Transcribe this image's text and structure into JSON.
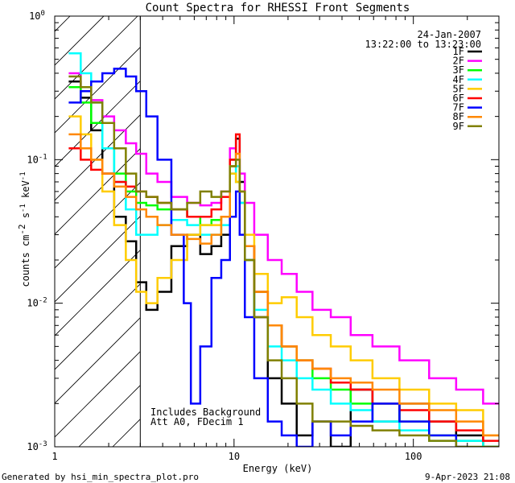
{
  "chart_data": {
    "type": "line",
    "title": "Count Spectra for RHESSI Front Segments",
    "xlabel": "Energy (keV)",
    "ylabel_parts": [
      "counts cm",
      "-2",
      " s",
      "-1",
      " keV",
      "-1"
    ],
    "xscale": "log",
    "yscale": "log",
    "xlim": [
      1,
      300
    ],
    "ylim": [
      0.001,
      1
    ],
    "x_ticks": [
      {
        "value": 1,
        "label": "1"
      },
      {
        "value": 10,
        "label": "10"
      },
      {
        "value": 100,
        "label": "100"
      }
    ],
    "y_ticks": [
      {
        "value": 0.001,
        "base": "10",
        "exp": "-3"
      },
      {
        "value": 0.01,
        "base": "10",
        "exp": "-2"
      },
      {
        "value": 0.1,
        "base": "10",
        "exp": "-1"
      },
      {
        "value": 1,
        "base": "10",
        "exp": "0"
      }
    ],
    "hatched_region_keV": [
      1,
      3
    ],
    "info": {
      "date": "24-Jan-2007",
      "time_range": "13:22:00 to 13:23:00"
    },
    "annotations": [
      "Includes Background",
      "Att A0, FDecim 1"
    ],
    "footer_left": "Generated by hsi_min_spectra_plot.pro",
    "footer_right": "9-Apr-2023 21:08",
    "series": [
      {
        "name": "1F",
        "color": "#000000",
        "x": [
          1.3,
          1.5,
          1.7,
          2.0,
          2.3,
          2.7,
          3.0,
          3.5,
          4.0,
          5.0,
          6.0,
          7.0,
          8.0,
          9.0,
          10.0,
          10.5,
          11.0,
          12.0,
          14.0,
          17.0,
          20.0,
          25.0,
          30.0,
          40.0,
          50.0,
          70.0,
          100.0,
          150.0,
          200.0,
          300.0
        ],
        "y": [
          0.35,
          0.27,
          0.16,
          0.08,
          0.04,
          0.027,
          0.014,
          0.009,
          0.012,
          0.025,
          0.03,
          0.022,
          0.025,
          0.03,
          0.1,
          0.14,
          0.07,
          0.02,
          0.008,
          0.003,
          0.002,
          0.0012,
          0.0015,
          0.001,
          0.0025,
          0.0015,
          0.002,
          0.0015,
          0.0012,
          0.001
        ]
      },
      {
        "name": "2F",
        "color": "#ff00ff",
        "x": [
          1.3,
          1.5,
          1.7,
          2.0,
          2.3,
          2.7,
          3.0,
          3.5,
          4.0,
          5.0,
          6.0,
          7.0,
          8.0,
          9.0,
          10.0,
          10.5,
          11.0,
          12.0,
          14.0,
          17.0,
          20.0,
          25.0,
          30.0,
          40.0,
          50.0,
          70.0,
          100.0,
          150.0,
          200.0,
          300.0
        ],
        "y": [
          0.4,
          0.32,
          0.26,
          0.2,
          0.16,
          0.13,
          0.11,
          0.08,
          0.07,
          0.055,
          0.05,
          0.048,
          0.05,
          0.06,
          0.12,
          0.1,
          0.08,
          0.05,
          0.03,
          0.02,
          0.016,
          0.012,
          0.009,
          0.008,
          0.006,
          0.005,
          0.004,
          0.003,
          0.0025,
          0.002
        ]
      },
      {
        "name": "3F",
        "color": "#00ff00",
        "x": [
          1.3,
          1.5,
          1.7,
          2.0,
          2.3,
          2.7,
          3.0,
          3.5,
          4.0,
          5.0,
          6.0,
          7.0,
          8.0,
          9.0,
          10.0,
          10.5,
          11.0,
          12.0,
          14.0,
          17.0,
          20.0,
          25.0,
          30.0,
          40.0,
          50.0,
          70.0,
          100.0,
          150.0,
          200.0,
          300.0
        ],
        "y": [
          0.32,
          0.25,
          0.18,
          0.12,
          0.08,
          0.06,
          0.05,
          0.048,
          0.045,
          0.045,
          0.04,
          0.035,
          0.038,
          0.04,
          0.09,
          0.07,
          0.05,
          0.025,
          0.012,
          0.007,
          0.005,
          0.004,
          0.003,
          0.0025,
          0.002,
          0.002,
          0.0015,
          0.0012,
          0.0011,
          0.001
        ]
      },
      {
        "name": "4F",
        "color": "#00ffff",
        "x": [
          1.3,
          1.5,
          1.7,
          2.0,
          2.3,
          2.7,
          3.0,
          3.5,
          4.0,
          5.0,
          6.0,
          7.0,
          8.0,
          9.0,
          10.0,
          10.5,
          11.0,
          12.0,
          14.0,
          17.0,
          20.0,
          25.0,
          30.0,
          40.0,
          50.0,
          70.0,
          100.0,
          150.0,
          200.0,
          300.0
        ],
        "y": [
          0.55,
          0.4,
          0.25,
          0.12,
          0.07,
          0.045,
          0.03,
          0.03,
          0.035,
          0.038,
          0.035,
          0.03,
          0.03,
          0.035,
          0.08,
          0.09,
          0.05,
          0.02,
          0.009,
          0.005,
          0.004,
          0.003,
          0.0025,
          0.002,
          0.0018,
          0.0015,
          0.0013,
          0.0011,
          0.0011,
          0.001
        ]
      },
      {
        "name": "5F",
        "color": "#ffcc00",
        "x": [
          1.3,
          1.5,
          1.7,
          2.0,
          2.3,
          2.7,
          3.0,
          3.5,
          4.0,
          5.0,
          6.0,
          7.0,
          8.0,
          9.0,
          10.0,
          10.5,
          11.0,
          12.0,
          14.0,
          17.0,
          20.0,
          25.0,
          30.0,
          40.0,
          50.0,
          70.0,
          100.0,
          150.0,
          200.0,
          300.0
        ],
        "y": [
          0.2,
          0.15,
          0.1,
          0.06,
          0.035,
          0.02,
          0.012,
          0.01,
          0.015,
          0.02,
          0.03,
          0.035,
          0.035,
          0.04,
          0.08,
          0.07,
          0.06,
          0.03,
          0.016,
          0.01,
          0.011,
          0.008,
          0.006,
          0.005,
          0.004,
          0.003,
          0.0025,
          0.002,
          0.0018,
          0.0012
        ]
      },
      {
        "name": "6F",
        "color": "#ff0000",
        "x": [
          1.3,
          1.5,
          1.7,
          2.0,
          2.3,
          2.7,
          3.0,
          3.5,
          4.0,
          5.0,
          6.0,
          7.0,
          8.0,
          9.0,
          10.0,
          10.5,
          11.0,
          12.0,
          14.0,
          17.0,
          20.0,
          25.0,
          30.0,
          40.0,
          50.0,
          70.0,
          100.0,
          150.0,
          200.0,
          300.0
        ],
        "y": [
          0.12,
          0.1,
          0.085,
          0.08,
          0.07,
          0.065,
          0.06,
          0.055,
          0.05,
          0.045,
          0.04,
          0.04,
          0.045,
          0.055,
          0.1,
          0.15,
          0.06,
          0.025,
          0.012,
          0.007,
          0.005,
          0.004,
          0.0035,
          0.0028,
          0.0025,
          0.002,
          0.0018,
          0.0015,
          0.0013,
          0.0011
        ]
      },
      {
        "name": "7F",
        "color": "#0000ff",
        "x": [
          1.3,
          1.5,
          1.7,
          2.0,
          2.3,
          2.7,
          3.0,
          3.5,
          4.0,
          5.0,
          5.5,
          6.0,
          7.0,
          8.0,
          9.0,
          10.0,
          10.5,
          11.0,
          12.0,
          14.0,
          17.0,
          20.0,
          25.0,
          30.0,
          40.0,
          50.0,
          70.0,
          100.0,
          150.0,
          200.0
        ],
        "y": [
          0.25,
          0.3,
          0.35,
          0.4,
          0.43,
          0.38,
          0.3,
          0.2,
          0.1,
          0.03,
          0.01,
          0.002,
          0.005,
          0.015,
          0.02,
          0.04,
          0.06,
          0.03,
          0.008,
          0.003,
          0.0015,
          0.0012,
          0.001,
          0.0015,
          0.0012,
          0.0015,
          0.002,
          0.0015,
          0.0012,
          0.001
        ]
      },
      {
        "name": "8F",
        "color": "#ff8800",
        "x": [
          1.3,
          1.5,
          1.7,
          2.0,
          2.3,
          2.7,
          3.0,
          3.5,
          4.0,
          5.0,
          6.0,
          7.0,
          8.0,
          9.0,
          10.0,
          10.5,
          11.0,
          12.0,
          14.0,
          17.0,
          20.0,
          25.0,
          30.0,
          40.0,
          50.0,
          70.0,
          100.0,
          150.0,
          200.0,
          300.0
        ],
        "y": [
          0.15,
          0.12,
          0.1,
          0.08,
          0.065,
          0.055,
          0.045,
          0.04,
          0.035,
          0.03,
          0.028,
          0.026,
          0.03,
          0.04,
          0.09,
          0.11,
          0.06,
          0.025,
          0.012,
          0.007,
          0.005,
          0.004,
          0.0035,
          0.003,
          0.0028,
          0.0025,
          0.002,
          0.0018,
          0.0015,
          0.0012
        ]
      },
      {
        "name": "9F",
        "color": "#808000",
        "x": [
          1.3,
          1.5,
          1.7,
          2.0,
          2.3,
          2.7,
          3.0,
          3.5,
          4.0,
          5.0,
          6.0,
          7.0,
          8.0,
          9.0,
          10.0,
          10.5,
          11.0,
          12.0,
          14.0,
          17.0,
          20.0,
          25.0,
          30.0,
          40.0,
          50.0,
          70.0,
          100.0,
          150.0,
          200.0,
          300.0
        ],
        "y": [
          0.38,
          0.32,
          0.25,
          0.18,
          0.12,
          0.08,
          0.06,
          0.055,
          0.05,
          0.045,
          0.05,
          0.06,
          0.055,
          0.06,
          0.09,
          0.1,
          0.06,
          0.02,
          0.008,
          0.004,
          0.003,
          0.002,
          0.0015,
          0.0015,
          0.0014,
          0.0013,
          0.0012,
          0.0011,
          0.001,
          0.001
        ]
      }
    ]
  }
}
